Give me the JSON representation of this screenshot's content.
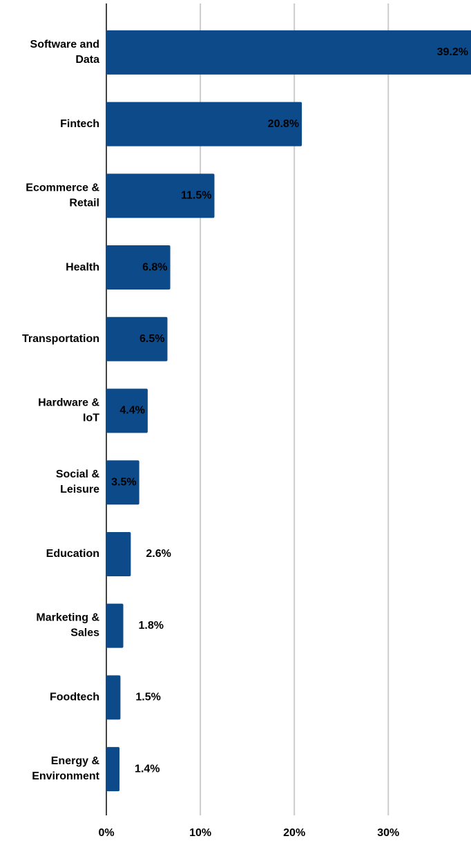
{
  "chart_data": {
    "type": "bar",
    "orientation": "horizontal",
    "categories": [
      "Software and\nData",
      "Fintech",
      "Ecommerce &\nRetail",
      "Health",
      "Transportation",
      "Hardware &\nIoT",
      "Social &\nLeisure",
      "Education",
      "Marketing &\nSales",
      "Foodtech",
      "Energy &\nEnvironment"
    ],
    "values": [
      39.2,
      20.8,
      11.5,
      6.8,
      6.5,
      4.4,
      3.5,
      2.6,
      1.8,
      1.5,
      1.4
    ],
    "value_labels": [
      "39.2%",
      "20.8%",
      "11.5%",
      "6.8%",
      "6.5%",
      "4.4%",
      "3.5%",
      "2.6%",
      "1.8%",
      "1.5%",
      "1.4%"
    ],
    "color": "#0d4a89",
    "xlim": [
      0,
      38.8
    ],
    "xticks": [
      {
        "value": 0,
        "label": "0%"
      },
      {
        "value": 10,
        "label": "10%"
      },
      {
        "value": 20,
        "label": "20%"
      },
      {
        "value": 30,
        "label": "30%"
      }
    ],
    "grid": true
  }
}
